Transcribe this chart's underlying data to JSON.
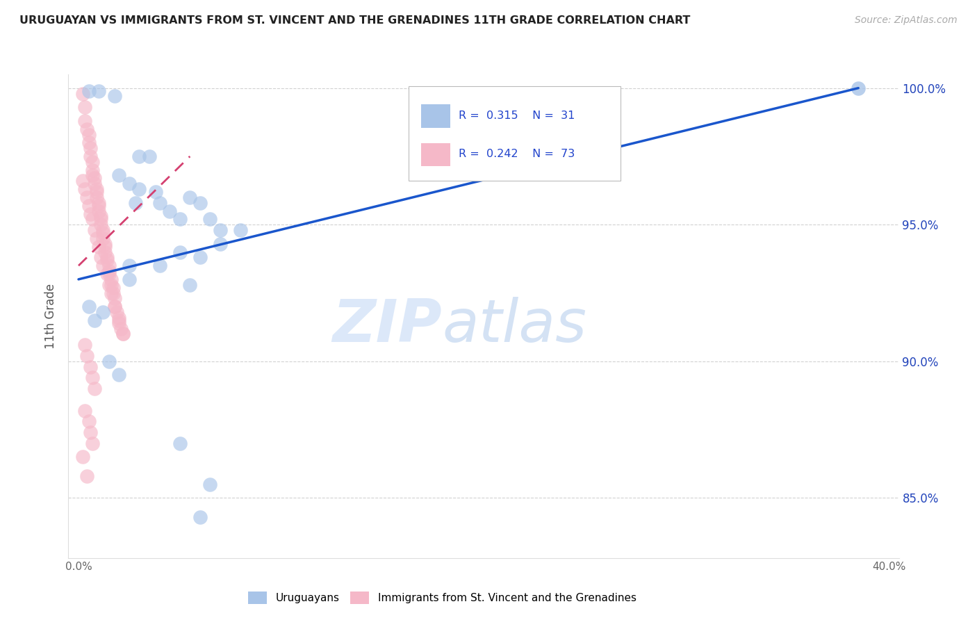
{
  "title": "URUGUAYAN VS IMMIGRANTS FROM ST. VINCENT AND THE GRENADINES 11TH GRADE CORRELATION CHART",
  "source_text": "Source: ZipAtlas.com",
  "ylabel": "11th Grade",
  "xlim": [
    0.0,
    0.4
  ],
  "ylim": [
    0.828,
    1.005
  ],
  "xticks": [
    0.0,
    0.4
  ],
  "yticks": [
    0.85,
    0.9,
    0.95,
    1.0
  ],
  "yticklabels_right": [
    "85.0%",
    "90.0%",
    "95.0%",
    "100.0%"
  ],
  "blue_color": "#a8c4e8",
  "pink_color": "#f5b8c8",
  "blue_line_color": "#1a56cc",
  "pink_line_color": "#d44070",
  "watermark_zip": "ZIP",
  "watermark_atlas": "atlas",
  "legend_label_blue": "Uruguayans",
  "legend_label_pink": "Immigrants from St. Vincent and the Grenadines",
  "blue_scatter": [
    [
      0.005,
      0.999
    ],
    [
      0.01,
      0.999
    ],
    [
      0.018,
      0.997
    ],
    [
      0.03,
      0.975
    ],
    [
      0.035,
      0.975
    ],
    [
      0.02,
      0.968
    ],
    [
      0.025,
      0.965
    ],
    [
      0.03,
      0.963
    ],
    [
      0.038,
      0.962
    ],
    [
      0.04,
      0.958
    ],
    [
      0.028,
      0.958
    ],
    [
      0.045,
      0.955
    ],
    [
      0.05,
      0.952
    ],
    [
      0.055,
      0.96
    ],
    [
      0.06,
      0.958
    ],
    [
      0.065,
      0.952
    ],
    [
      0.07,
      0.948
    ],
    [
      0.08,
      0.948
    ],
    [
      0.07,
      0.943
    ],
    [
      0.05,
      0.94
    ],
    [
      0.06,
      0.938
    ],
    [
      0.04,
      0.935
    ],
    [
      0.025,
      0.935
    ],
    [
      0.025,
      0.93
    ],
    [
      0.055,
      0.928
    ],
    [
      0.005,
      0.92
    ],
    [
      0.012,
      0.918
    ],
    [
      0.008,
      0.915
    ],
    [
      0.015,
      0.9
    ],
    [
      0.02,
      0.895
    ],
    [
      0.05,
      0.87
    ],
    [
      0.065,
      0.855
    ],
    [
      0.06,
      0.843
    ]
  ],
  "pink_scatter": [
    [
      0.002,
      0.998
    ],
    [
      0.003,
      0.993
    ],
    [
      0.003,
      0.988
    ],
    [
      0.004,
      0.985
    ],
    [
      0.005,
      0.983
    ],
    [
      0.005,
      0.98
    ],
    [
      0.006,
      0.978
    ],
    [
      0.006,
      0.975
    ],
    [
      0.007,
      0.973
    ],
    [
      0.007,
      0.97
    ],
    [
      0.007,
      0.968
    ],
    [
      0.008,
      0.967
    ],
    [
      0.008,
      0.965
    ],
    [
      0.009,
      0.963
    ],
    [
      0.009,
      0.962
    ],
    [
      0.009,
      0.96
    ],
    [
      0.01,
      0.958
    ],
    [
      0.01,
      0.957
    ],
    [
      0.01,
      0.955
    ],
    [
      0.011,
      0.953
    ],
    [
      0.011,
      0.952
    ],
    [
      0.011,
      0.95
    ],
    [
      0.012,
      0.948
    ],
    [
      0.012,
      0.947
    ],
    [
      0.012,
      0.945
    ],
    [
      0.013,
      0.943
    ],
    [
      0.013,
      0.942
    ],
    [
      0.013,
      0.94
    ],
    [
      0.014,
      0.938
    ],
    [
      0.014,
      0.937
    ],
    [
      0.015,
      0.935
    ],
    [
      0.015,
      0.933
    ],
    [
      0.015,
      0.932
    ],
    [
      0.016,
      0.93
    ],
    [
      0.016,
      0.928
    ],
    [
      0.017,
      0.927
    ],
    [
      0.017,
      0.925
    ],
    [
      0.018,
      0.923
    ],
    [
      0.018,
      0.92
    ],
    [
      0.019,
      0.918
    ],
    [
      0.02,
      0.916
    ],
    [
      0.02,
      0.914
    ],
    [
      0.021,
      0.912
    ],
    [
      0.022,
      0.91
    ],
    [
      0.002,
      0.966
    ],
    [
      0.003,
      0.963
    ],
    [
      0.004,
      0.96
    ],
    [
      0.005,
      0.957
    ],
    [
      0.006,
      0.954
    ],
    [
      0.007,
      0.952
    ],
    [
      0.008,
      0.948
    ],
    [
      0.009,
      0.945
    ],
    [
      0.01,
      0.942
    ],
    [
      0.011,
      0.938
    ],
    [
      0.012,
      0.935
    ],
    [
      0.014,
      0.932
    ],
    [
      0.015,
      0.928
    ],
    [
      0.016,
      0.925
    ],
    [
      0.018,
      0.92
    ],
    [
      0.02,
      0.915
    ],
    [
      0.022,
      0.91
    ],
    [
      0.003,
      0.906
    ],
    [
      0.004,
      0.902
    ],
    [
      0.006,
      0.898
    ],
    [
      0.007,
      0.894
    ],
    [
      0.008,
      0.89
    ],
    [
      0.003,
      0.882
    ],
    [
      0.005,
      0.878
    ],
    [
      0.006,
      0.874
    ],
    [
      0.007,
      0.87
    ],
    [
      0.002,
      0.865
    ],
    [
      0.004,
      0.858
    ]
  ],
  "blue_trend_x": [
    0.0,
    0.385
  ],
  "blue_trend_y": [
    0.93,
    1.0
  ],
  "pink_trend_x": [
    0.0,
    0.055
  ],
  "pink_trend_y": [
    0.935,
    0.975
  ]
}
